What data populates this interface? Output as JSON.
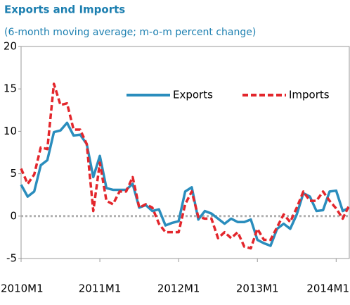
{
  "chart_data": {
    "type": "line",
    "title": "Exports and Imports",
    "subtitle": "(6-month moving average; m-o-m percent change)",
    "x": [
      0,
      1,
      2,
      3,
      4,
      5,
      6,
      7,
      8,
      9,
      10,
      11,
      12,
      13,
      14,
      15,
      16,
      17,
      18,
      19,
      20,
      21,
      22,
      23,
      24,
      25,
      26,
      27,
      28,
      29,
      30,
      31,
      32,
      33,
      34,
      35,
      36,
      37,
      38,
      39,
      40,
      41,
      42,
      43,
      44,
      45,
      46,
      47,
      48,
      49,
      50
    ],
    "xlim": [
      0,
      50
    ],
    "xticks": [
      {
        "value": 0,
        "label": "2010M1"
      },
      {
        "value": 12,
        "label": "2011M1"
      },
      {
        "value": 24,
        "label": "2012M1"
      },
      {
        "value": 36,
        "label": "2013M1"
      },
      {
        "value": 48,
        "label": "2014M1"
      }
    ],
    "ylim": [
      -5,
      20
    ],
    "yticks": [
      -5,
      0,
      5,
      10,
      15,
      20
    ],
    "legend": "upper right",
    "series": [
      {
        "name": "Exports",
        "color": "#2a8dbd",
        "style": "solid",
        "values": [
          3.7,
          2.3,
          2.9,
          6.0,
          6.6,
          9.9,
          10.1,
          11.0,
          9.5,
          9.6,
          8.5,
          4.6,
          7.1,
          3.3,
          3.1,
          3.1,
          3.1,
          3.8,
          1.0,
          1.3,
          0.6,
          0.8,
          -1.1,
          -0.8,
          -0.6,
          2.9,
          3.4,
          -0.4,
          0.6,
          0.3,
          -0.3,
          -0.9,
          -0.3,
          -0.7,
          -0.7,
          -0.4,
          -2.8,
          -3.2,
          -3.5,
          -1.5,
          -0.9,
          -1.5,
          0.2,
          2.7,
          2.3,
          0.6,
          0.7,
          2.9,
          3.0,
          0.6,
          1.0
        ]
      },
      {
        "name": "Imports",
        "color": "#e3262c",
        "style": "dashed",
        "values": [
          5.6,
          3.8,
          4.9,
          8.1,
          7.9,
          15.6,
          13.1,
          13.3,
          10.2,
          10.2,
          8.5,
          0.6,
          6.3,
          1.8,
          1.4,
          2.9,
          2.9,
          4.6,
          1.0,
          1.4,
          1.0,
          -0.9,
          -1.9,
          -1.9,
          -1.9,
          1.4,
          2.9,
          -0.1,
          -0.3,
          -0.3,
          -2.6,
          -1.9,
          -2.6,
          -1.9,
          -3.6,
          -3.8,
          -1.5,
          -2.8,
          -2.8,
          -1.3,
          0.2,
          -0.7,
          1.0,
          2.9,
          1.8,
          1.8,
          2.9,
          1.8,
          0.9,
          -0.3,
          1.3
        ]
      }
    ]
  }
}
